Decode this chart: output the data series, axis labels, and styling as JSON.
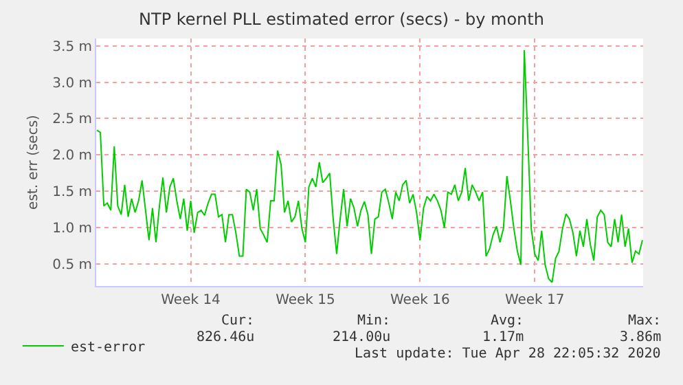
{
  "chart_data": {
    "type": "line",
    "title": "NTP kernel PLL estimated error (secs) - by month",
    "ylabel": "est. err (secs)",
    "categories": [
      null,
      null,
      null,
      null,
      null,
      null,
      null,
      null,
      null,
      null,
      null,
      null,
      null,
      null,
      null,
      null,
      null,
      null,
      null,
      null,
      null,
      null,
      null,
      null,
      null,
      null,
      null,
      "Week 14",
      null,
      null,
      null,
      null,
      null,
      null,
      null,
      null,
      null,
      null,
      null,
      null,
      null,
      null,
      null,
      null,
      null,
      null,
      null,
      null,
      null,
      null,
      null,
      null,
      null,
      null,
      null,
      null,
      null,
      null,
      null,
      null,
      "Week 15",
      null,
      null,
      null,
      null,
      null,
      null,
      null,
      null,
      null,
      null,
      null,
      null,
      null,
      null,
      null,
      null,
      null,
      null,
      null,
      null,
      null,
      null,
      null,
      null,
      null,
      null,
      null,
      null,
      null,
      null,
      null,
      null,
      "Week 16",
      null,
      null,
      null,
      null,
      null,
      null,
      null,
      null,
      null,
      null,
      null,
      null,
      null,
      null,
      null,
      null,
      null,
      null,
      null,
      null,
      null,
      null,
      null,
      null,
      null,
      null,
      null,
      null,
      null,
      null,
      null,
      null,
      "Week 17",
      null,
      null,
      null,
      null,
      null,
      null,
      null,
      null,
      null,
      null,
      null,
      null,
      null,
      null,
      null,
      null,
      null,
      null,
      null,
      null,
      null,
      null,
      null,
      null,
      null,
      null,
      null,
      null,
      null,
      null,
      null
    ],
    "series": [
      {
        "name": "est-error",
        "color": "#00cc00",
        "values": [
          2.34,
          2.31,
          1.3,
          1.34,
          1.24,
          2.12,
          1.3,
          1.18,
          1.59,
          1.15,
          1.4,
          1.21,
          1.37,
          1.65,
          1.24,
          0.83,
          1.27,
          0.8,
          1.3,
          1.69,
          1.21,
          1.56,
          1.68,
          1.37,
          1.12,
          1.4,
          0.96,
          1.37,
          0.93,
          1.21,
          1.24,
          1.17,
          1.34,
          1.46,
          1.46,
          1.15,
          1.18,
          0.8,
          1.18,
          1.18,
          0.93,
          0.61,
          0.61,
          1.53,
          1.49,
          1.24,
          1.53,
          0.99,
          0.9,
          0.8,
          1.37,
          1.37,
          2.06,
          1.87,
          1.21,
          1.37,
          1.08,
          1.15,
          1.37,
          0.99,
          0.8,
          1.56,
          1.68,
          1.56,
          1.9,
          1.62,
          1.68,
          1.75,
          1.12,
          0.64,
          1.12,
          1.53,
          1.02,
          1.4,
          1.27,
          1.02,
          1.24,
          1.36,
          1.18,
          0.64,
          1.12,
          1.15,
          1.49,
          1.53,
          1.34,
          1.12,
          1.49,
          1.37,
          1.59,
          1.65,
          1.34,
          1.46,
          1.21,
          0.83,
          1.27,
          1.43,
          1.37,
          1.46,
          1.37,
          1.24,
          1.0,
          1.49,
          1.46,
          1.59,
          1.37,
          1.49,
          1.82,
          1.37,
          1.59,
          1.49,
          1.37,
          1.49,
          0.61,
          0.71,
          0.9,
          1.02,
          0.8,
          0.99,
          1.71,
          1.37,
          0.99,
          0.68,
          0.49,
          3.44,
          2.25,
          0.99,
          0.64,
          0.55,
          0.96,
          0.49,
          0.3,
          0.25,
          0.58,
          0.68,
          0.99,
          1.19,
          1.12,
          0.93,
          0.61,
          0.96,
          0.74,
          1.12,
          0.77,
          0.55,
          1.15,
          1.24,
          1.18,
          0.8,
          0.74,
          1.12,
          0.8,
          1.18,
          0.74,
          0.99,
          0.52,
          0.68,
          0.64,
          0.83
        ]
      }
    ],
    "ylim": [
      0.2,
      3.6
    ],
    "yticks": [
      {
        "value": 0.5,
        "label": "0.5 m"
      },
      {
        "value": 1.0,
        "label": "1.0 m"
      },
      {
        "value": 1.5,
        "label": "1.5 m"
      },
      {
        "value": 2.0,
        "label": "2.0 m"
      },
      {
        "value": 2.5,
        "label": "2.5 m"
      },
      {
        "value": 3.0,
        "label": "3.0 m"
      },
      {
        "value": 3.5,
        "label": "3.5 m"
      }
    ],
    "grid": true,
    "legend": "bottom",
    "marker": "none",
    "line_style": "solid",
    "annotations": [
      "Cur:",
      "826.46u",
      "Min:",
      "214.00u",
      "Avg:",
      "1.17m",
      "Max:",
      "3.86m",
      "Last update: Tue Apr 28 22:05:32 2020"
    ]
  }
}
